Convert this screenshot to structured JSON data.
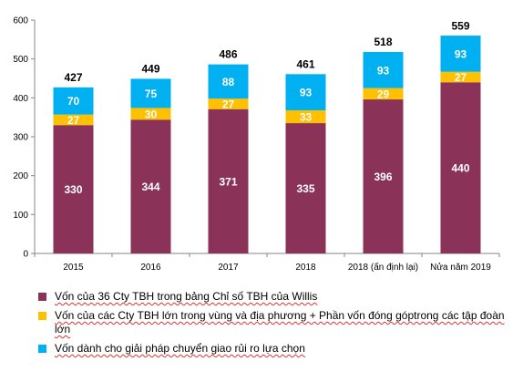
{
  "chart_data": {
    "type": "bar",
    "stacked": true,
    "categories": [
      "2015",
      "2016",
      "2017",
      "2018",
      "2018 (ấn định lại)",
      "Nửa năm 2019"
    ],
    "series": [
      {
        "name": "Vốn của 36 Cty TBH trong bảng Chỉ số TBH của Willis",
        "color": "#8B3259",
        "values": [
          330,
          344,
          371,
          335,
          396,
          440
        ]
      },
      {
        "name": "Vốn của các Cty TBH lớn trong vùng và địa phương + Phần vốn đóng góptrong các tập đoàn lớn",
        "color": "#FFC000",
        "values": [
          27,
          30,
          27,
          33,
          29,
          27
        ]
      },
      {
        "name": "Vốn dành cho giải pháp chuyển giao rủi ro lựa chọn",
        "color": "#00B0F0",
        "values": [
          70,
          75,
          88,
          93,
          93,
          93
        ]
      }
    ],
    "totals": [
      427,
      449,
      486,
      461,
      518,
      559
    ],
    "ylim": [
      0,
      600
    ],
    "yticks": [
      0,
      100,
      200,
      300,
      400,
      500,
      600
    ],
    "grid": false,
    "legend_position": "bottom",
    "title": "",
    "xlabel": "",
    "ylabel": ""
  },
  "legend": {
    "items": [
      {
        "label": "Vốn của 36 Cty TBH trong bảng Chỉ số TBH của Willis",
        "color": "#8B3259"
      },
      {
        "label": "Vốn của các Cty TBH lớn trong vùng và địa phương + Phần vốn đóng góptrong các tập đoàn lớn",
        "color": "#FFC000"
      },
      {
        "label": "Vốn dành cho giải pháp chuyển giao rủi ro lựa chọn",
        "color": "#00B0F0"
      }
    ]
  }
}
